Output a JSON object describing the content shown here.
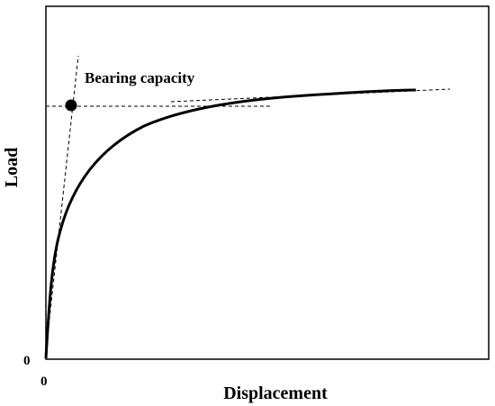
{
  "figure": {
    "annotation": "Bearing capacity",
    "xlabel": "Displacement",
    "ylabel": "Load",
    "x_origin": "0",
    "y_origin": "0"
  },
  "legend": [],
  "style": {
    "curve_color": "#000000",
    "tangent_line_color": "#000000",
    "point_color": "#000000",
    "frame_color": "#000000"
  }
}
